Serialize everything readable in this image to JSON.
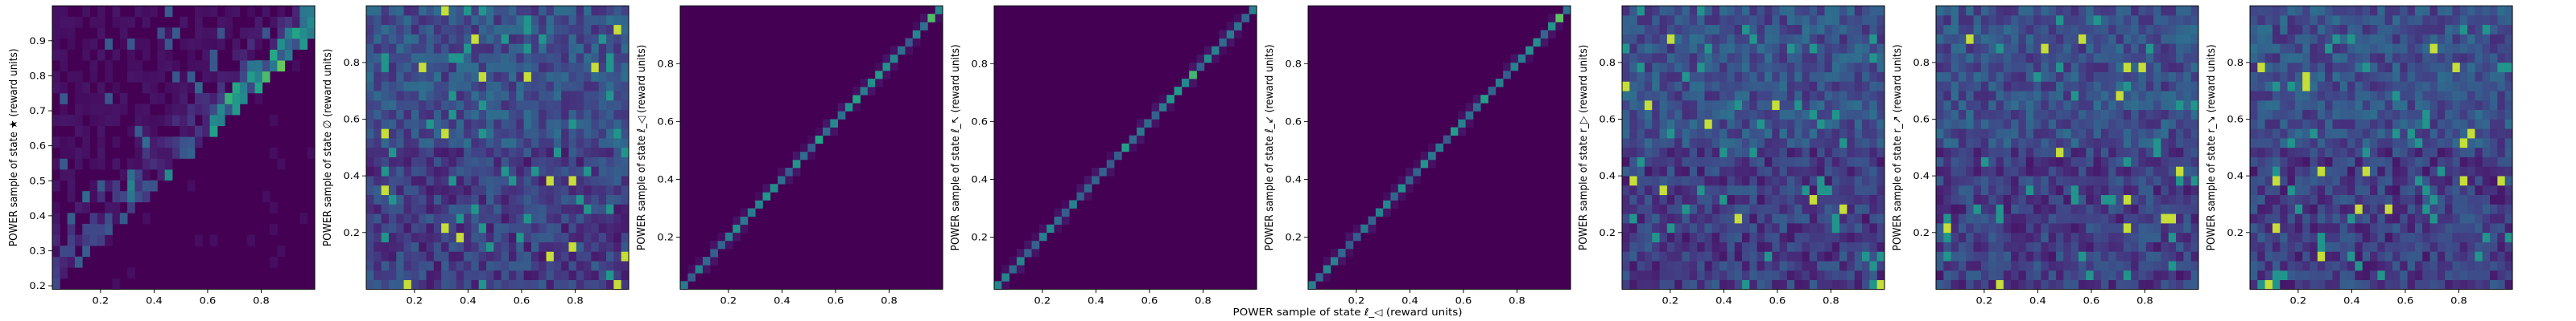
{
  "figure": {
    "xlabel": "POWER sample of state ℓ_◁ (reward units)",
    "colormap": "viridis",
    "colors": {
      "low": "#440154",
      "high": "#fde725"
    }
  },
  "chart_data": [
    {
      "type": "heatmap",
      "pattern": "triangle",
      "ylabel": "POWER sample of state ★ (reward units)",
      "xlim": [
        0.02,
        1.0
      ],
      "ylim": [
        0.19,
        1.0
      ],
      "xticks": [
        "0.2",
        "0.4",
        "0.6",
        "0.8"
      ],
      "yticks": [
        "0.2",
        "0.3",
        "0.4",
        "0.5",
        "0.6",
        "0.7",
        "0.8",
        "0.9"
      ],
      "bins": [
        35,
        26
      ]
    },
    {
      "type": "heatmap",
      "pattern": "uniform",
      "ylabel": "POWER sample of state ∅ (reward units)",
      "xlim": [
        0.02,
        1.0
      ],
      "ylim": [
        0.0,
        1.0
      ],
      "xticks": [
        "0.2",
        "0.4",
        "0.6",
        "0.8"
      ],
      "yticks": [
        "0.2",
        "0.4",
        "0.6",
        "0.8"
      ],
      "bins": [
        35,
        30
      ]
    },
    {
      "type": "heatmap",
      "pattern": "diagonal",
      "ylabel": "POWER sample of state ℓ_◁ (reward units)",
      "xlim": [
        0.02,
        1.0
      ],
      "ylim": [
        0.02,
        1.0
      ],
      "xticks": [
        "0.2",
        "0.4",
        "0.6",
        "0.8"
      ],
      "yticks": [
        "0.2",
        "0.4",
        "0.6",
        "0.8"
      ],
      "bins": [
        35,
        35
      ]
    },
    {
      "type": "heatmap",
      "pattern": "diagonal",
      "ylabel": "POWER sample of state ℓ_↖ (reward units)",
      "xlim": [
        0.02,
        1.0
      ],
      "ylim": [
        0.02,
        1.0
      ],
      "xticks": [
        "0.2",
        "0.4",
        "0.6",
        "0.8"
      ],
      "yticks": [
        "0.2",
        "0.4",
        "0.6",
        "0.8"
      ],
      "bins": [
        35,
        35
      ]
    },
    {
      "type": "heatmap",
      "pattern": "diagonal",
      "ylabel": "POWER sample of state ℓ_↙ (reward units)",
      "xlim": [
        0.02,
        1.0
      ],
      "ylim": [
        0.02,
        1.0
      ],
      "xticks": [
        "0.2",
        "0.4",
        "0.6",
        "0.8"
      ],
      "yticks": [
        "0.2",
        "0.4",
        "0.6",
        "0.8"
      ],
      "bins": [
        35,
        35
      ]
    },
    {
      "type": "heatmap",
      "pattern": "uniform",
      "ylabel": "POWER sample of state r_▷ (reward units)",
      "xlim": [
        0.02,
        1.0
      ],
      "ylim": [
        0.0,
        1.0
      ],
      "xticks": [
        "0.2",
        "0.4",
        "0.6",
        "0.8"
      ],
      "yticks": [
        "0.2",
        "0.4",
        "0.6",
        "0.8"
      ],
      "bins": [
        35,
        30
      ]
    },
    {
      "type": "heatmap",
      "pattern": "uniform",
      "ylabel": "POWER sample of state r_↗ (reward units)",
      "xlim": [
        0.02,
        1.0
      ],
      "ylim": [
        0.0,
        1.0
      ],
      "xticks": [
        "0.2",
        "0.4",
        "0.6",
        "0.8"
      ],
      "yticks": [
        "0.2",
        "0.4",
        "0.6",
        "0.8"
      ],
      "bins": [
        35,
        30
      ]
    },
    {
      "type": "heatmap",
      "pattern": "uniform",
      "ylabel": "POWER sample of state r_↘ (reward units)",
      "xlim": [
        0.02,
        1.0
      ],
      "ylim": [
        0.0,
        1.0
      ],
      "xticks": [
        "0.2",
        "0.4",
        "0.6",
        "0.8"
      ],
      "yticks": [
        "0.2",
        "0.4",
        "0.6",
        "0.8"
      ],
      "bins": [
        35,
        30
      ]
    }
  ]
}
